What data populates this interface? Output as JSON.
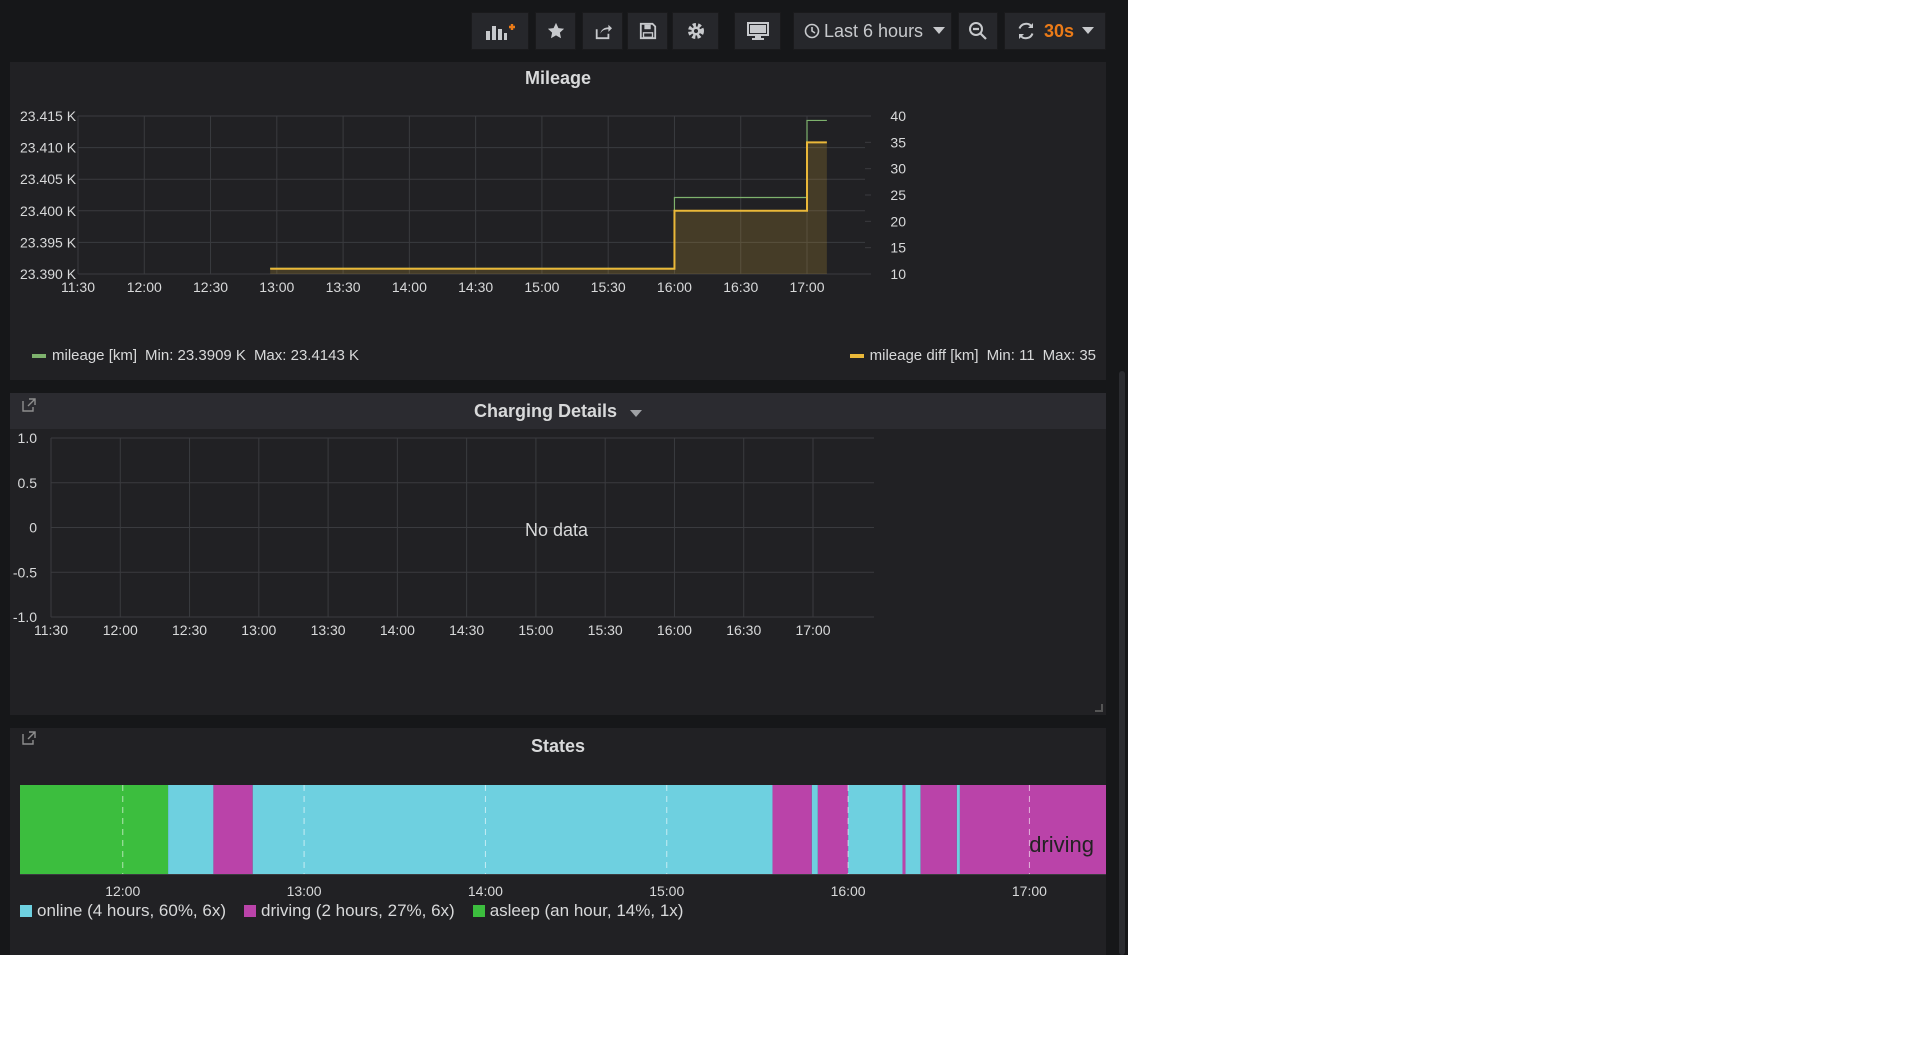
{
  "toolbar": {
    "add_panel_icon": "add-panel-icon",
    "star_icon": "star-icon",
    "share_icon": "share-icon",
    "save_icon": "save-icon",
    "settings_icon": "gear-icon",
    "tv_icon": "tv-mode-icon",
    "time_range": "Last 6 hours",
    "zoom_icon": "zoom-out-icon",
    "refresh_icon": "refresh-icon",
    "refresh_interval": "30s",
    "accent_color": "#eb7b18"
  },
  "panels": {
    "mileage": {
      "title": "Mileage",
      "legend_left": {
        "name": "mileage [km]",
        "min": "Min: 23.3909 K",
        "max": "Max: 23.4143 K",
        "color": "#7eb26d"
      },
      "legend_right": {
        "name": "mileage diff [km]",
        "min": "Min: 11",
        "max": "Max: 35",
        "color": "#eab839"
      }
    },
    "charging": {
      "title": "Charging Details",
      "no_data": "No data"
    },
    "states": {
      "title": "States",
      "bar_label": "driving",
      "legend": [
        {
          "label": "online (4 hours, 60%, 6x)",
          "color": "#6ed0e0"
        },
        {
          "label": "driving (2 hours, 27%, 6x)",
          "color": "#ba43a9"
        },
        {
          "label": "asleep (an hour, 14%, 1x)",
          "color": "#3cbe3e"
        }
      ]
    }
  },
  "chart_data": [
    {
      "type": "line",
      "title": "Mileage",
      "x_ticks": [
        "11:30",
        "12:00",
        "12:30",
        "13:00",
        "13:30",
        "14:00",
        "14:30",
        "15:00",
        "15:30",
        "16:00",
        "16:30",
        "17:00"
      ],
      "y_left_ticks": [
        "23.390 K",
        "23.395 K",
        "23.400 K",
        "23.405 K",
        "23.410 K",
        "23.415 K"
      ],
      "y_left_range": [
        23.39,
        23.415
      ],
      "y_right_ticks": [
        "10",
        "15",
        "20",
        "25",
        "30",
        "35",
        "40"
      ],
      "y_right_range": [
        10,
        40
      ],
      "series": [
        {
          "name": "mileage [km]",
          "axis": "left",
          "color": "#7eb26d",
          "step": true,
          "x": [
            "12:57",
            "16:00",
            "17:00",
            "17:09"
          ],
          "y": [
            23.3909,
            23.4021,
            23.4143,
            23.4143
          ]
        },
        {
          "name": "mileage diff [km]",
          "axis": "right",
          "color": "#eab839",
          "step": true,
          "fill": true,
          "x": [
            "12:57",
            "16:00",
            "17:00",
            "17:09"
          ],
          "y": [
            11,
            22,
            35,
            35
          ]
        }
      ]
    },
    {
      "type": "line",
      "title": "Charging Details",
      "x_ticks": [
        "11:30",
        "12:00",
        "12:30",
        "13:00",
        "13:30",
        "14:00",
        "14:30",
        "15:00",
        "15:30",
        "16:00",
        "16:30",
        "17:00"
      ],
      "y_ticks": [
        "1.0",
        "0.5",
        "0",
        "-0.5",
        "-1.0"
      ],
      "y_range": [
        -1.0,
        1.0
      ],
      "series": []
    },
    {
      "type": "bar",
      "title": "States",
      "x_ticks": [
        "12:00",
        "13:00",
        "14:00",
        "15:00",
        "16:00",
        "17:00"
      ],
      "x_range": [
        "11:26",
        "17:26"
      ],
      "segments": [
        {
          "state": "asleep",
          "start": "11:26",
          "end": "12:15"
        },
        {
          "state": "online",
          "start": "12:15",
          "end": "12:30"
        },
        {
          "state": "driving",
          "start": "12:30",
          "end": "12:43"
        },
        {
          "state": "online",
          "start": "12:43",
          "end": "15:35"
        },
        {
          "state": "driving",
          "start": "15:35",
          "end": "15:48"
        },
        {
          "state": "online",
          "start": "15:48",
          "end": "15:50"
        },
        {
          "state": "driving",
          "start": "15:50",
          "end": "16:00"
        },
        {
          "state": "online",
          "start": "16:00",
          "end": "16:18"
        },
        {
          "state": "driving",
          "start": "16:18",
          "end": "16:19"
        },
        {
          "state": "online",
          "start": "16:19",
          "end": "16:24"
        },
        {
          "state": "driving",
          "start": "16:24",
          "end": "16:36"
        },
        {
          "state": "online",
          "start": "16:36",
          "end": "16:37"
        },
        {
          "state": "driving",
          "start": "16:37",
          "end": "17:26"
        }
      ],
      "colors": {
        "online": "#6ed0e0",
        "driving": "#ba43a9",
        "asleep": "#3cbe3e"
      }
    }
  ]
}
